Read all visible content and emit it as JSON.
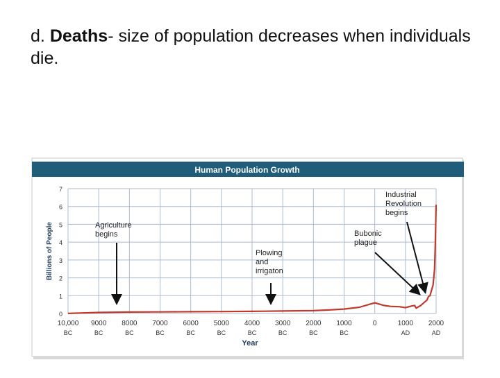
{
  "slide": {
    "label": "d.",
    "term": "Deaths",
    "text": "- size of population decreases when individuals die."
  },
  "chart_data": {
    "type": "line",
    "title": "Human Population Growth",
    "xlabel": "Year",
    "ylabel": "Billions of People",
    "ylim": [
      0,
      7
    ],
    "yticks": [
      0,
      1,
      2,
      3,
      4,
      5,
      6,
      7
    ],
    "x_ticks": [
      {
        "value": -10000,
        "line1": "10,000",
        "line2": "BC"
      },
      {
        "value": -9000,
        "line1": "9000",
        "line2": "BC"
      },
      {
        "value": -8000,
        "line1": "8000",
        "line2": "BC"
      },
      {
        "value": -7000,
        "line1": "7000",
        "line2": "BC"
      },
      {
        "value": -6000,
        "line1": "6000",
        "line2": "BC"
      },
      {
        "value": -5000,
        "line1": "5000",
        "line2": "BC"
      },
      {
        "value": -4000,
        "line1": "4000",
        "line2": "BC"
      },
      {
        "value": -3000,
        "line1": "3000",
        "line2": "BC"
      },
      {
        "value": -2000,
        "line1": "2000",
        "line2": "BC"
      },
      {
        "value": -1000,
        "line1": "1000",
        "line2": "BC"
      },
      {
        "value": 0,
        "line1": "0",
        "line2": ""
      },
      {
        "value": 1000,
        "line1": "1000",
        "line2": "AD"
      },
      {
        "value": 2000,
        "line1": "2000",
        "line2": "AD"
      }
    ],
    "xlim": [
      -10000,
      2000
    ],
    "grid": true,
    "series": [
      {
        "color": "#c0392b",
        "points": [
          [
            -10000,
            0.004
          ],
          [
            -9000,
            0.06
          ],
          [
            -8000,
            0.08
          ],
          [
            -7000,
            0.09
          ],
          [
            -6000,
            0.1
          ],
          [
            -5000,
            0.11
          ],
          [
            -4000,
            0.12
          ],
          [
            -3000,
            0.14
          ],
          [
            -2000,
            0.16
          ],
          [
            -1500,
            0.2
          ],
          [
            -1000,
            0.25
          ],
          [
            -500,
            0.35
          ],
          [
            0,
            0.6
          ],
          [
            300,
            0.45
          ],
          [
            500,
            0.4
          ],
          [
            800,
            0.38
          ],
          [
            1000,
            0.33
          ],
          [
            1200,
            0.42
          ],
          [
            1300,
            0.45
          ],
          [
            1350,
            0.3
          ],
          [
            1400,
            0.35
          ],
          [
            1500,
            0.45
          ],
          [
            1600,
            0.6
          ],
          [
            1700,
            0.75
          ],
          [
            1750,
            0.95
          ],
          [
            1800,
            1.0
          ],
          [
            1850,
            1.3
          ],
          [
            1900,
            1.6
          ],
          [
            1950,
            2.5
          ],
          [
            1975,
            4.0
          ],
          [
            2000,
            6.1
          ]
        ]
      }
    ],
    "annotations": [
      {
        "text_lines": [
          "Agriculture",
          "begins"
        ],
        "target_x": -8000,
        "target_y": 0.08
      },
      {
        "text_lines": [
          "Plowing",
          "and",
          "irrigaton"
        ],
        "target_x": -3000,
        "target_y": 0.14
      },
      {
        "text_lines": [
          "Bubonic",
          "plague"
        ],
        "target_x": 1350,
        "target_y": 0.3
      },
      {
        "text_lines": [
          "Industrial",
          "Revolution",
          "begins"
        ],
        "target_x": 1750,
        "target_y": 0.95
      }
    ],
    "colors": {
      "header": "#1f5d7a",
      "header_text": "#ffffff",
      "plot_bg": "#ffffff",
      "grid": "#a9bbd2",
      "line": "#c0392b"
    }
  }
}
